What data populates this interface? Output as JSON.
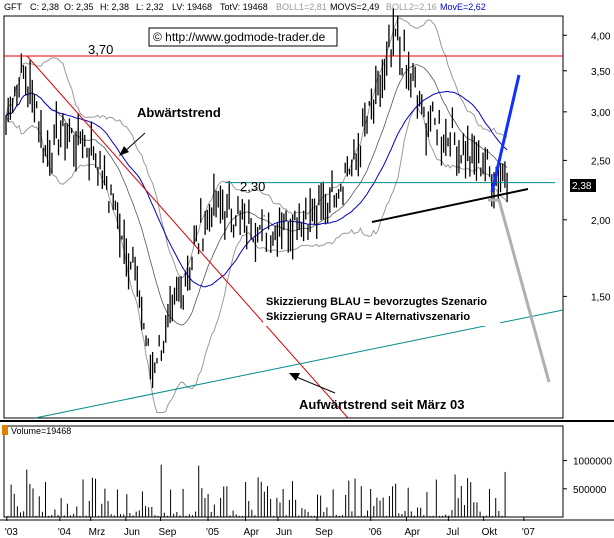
{
  "header": {
    "symbol": "GFT",
    "close": "C: 2,38",
    "open": "O: 2,35",
    "high": "H: 2,38",
    "low": "L: 2,32",
    "lastvol": "LV: 19468",
    "totvol": "TotV: 19468",
    "boll1": "BOLL1=2,81",
    "movs": "MOVS=2,49",
    "boll2": "BOLL2=2,16",
    "move": "MovE=2,62",
    "colors": {
      "boll": "#9a9a9a",
      "movs": "#000000",
      "move": "#0000cc"
    }
  },
  "copyright": "© http://www.godmode-trader.de",
  "chart_data": {
    "type": "candlestick",
    "x_tick_labels": [
      "'03",
      "'04",
      "Mrz",
      "Jun",
      "Sep",
      "'05",
      "Apr",
      "Jun",
      "Sep",
      "'06",
      "Apr",
      "Jul",
      "Okt",
      "'07"
    ],
    "y_tick_labels": [
      "4,00",
      "3,50",
      "3,00",
      "2,50",
      "2,00",
      "1,50"
    ],
    "y_scale": "log",
    "ylim": [
      0.95,
      4.3
    ],
    "last_price_label": "2,38",
    "level_labels": [
      "3,70",
      "2,30"
    ],
    "annotations": {
      "downtrend": "Abwärtstrend",
      "uptrend": "Aufwärtstrend seit März 03",
      "legend_blue": "Skizzierung BLAU = bevorzugtes Szenario",
      "legend_grey": "Skizzierung GRAU = Alternativszenario"
    },
    "price_waypoints": [
      {
        "t": 0,
        "p": 2.95
      },
      {
        "t": 0.03,
        "p": 3.45
      },
      {
        "t": 0.055,
        "p": 3.1
      },
      {
        "t": 0.07,
        "p": 2.55
      },
      {
        "t": 0.1,
        "p": 2.8
      },
      {
        "t": 0.15,
        "p": 2.65
      },
      {
        "t": 0.19,
        "p": 2.15
      },
      {
        "t": 0.23,
        "p": 1.65
      },
      {
        "t": 0.26,
        "p": 1.15
      },
      {
        "t": 0.3,
        "p": 1.4
      },
      {
        "t": 0.33,
        "p": 1.7
      },
      {
        "t": 0.36,
        "p": 2.05
      },
      {
        "t": 0.4,
        "p": 2.1
      },
      {
        "t": 0.44,
        "p": 1.95
      },
      {
        "t": 0.48,
        "p": 1.95
      },
      {
        "t": 0.52,
        "p": 2.0
      },
      {
        "t": 0.56,
        "p": 2.05
      },
      {
        "t": 0.6,
        "p": 2.3
      },
      {
        "t": 0.63,
        "p": 2.55
      },
      {
        "t": 0.66,
        "p": 3.1
      },
      {
        "t": 0.68,
        "p": 3.45
      },
      {
        "t": 0.7,
        "p": 3.95
      },
      {
        "t": 0.72,
        "p": 3.5
      },
      {
        "t": 0.75,
        "p": 2.95
      },
      {
        "t": 0.79,
        "p": 2.75
      },
      {
        "t": 0.82,
        "p": 2.6
      },
      {
        "t": 0.85,
        "p": 2.55
      },
      {
        "t": 0.88,
        "p": 2.3
      },
      {
        "t": 0.9,
        "p": 2.38
      }
    ],
    "volume": {
      "label": "Volume=19468",
      "y_tick_labels": [
        "1000000",
        "500000"
      ],
      "ylim": [
        0,
        1400000
      ]
    }
  }
}
